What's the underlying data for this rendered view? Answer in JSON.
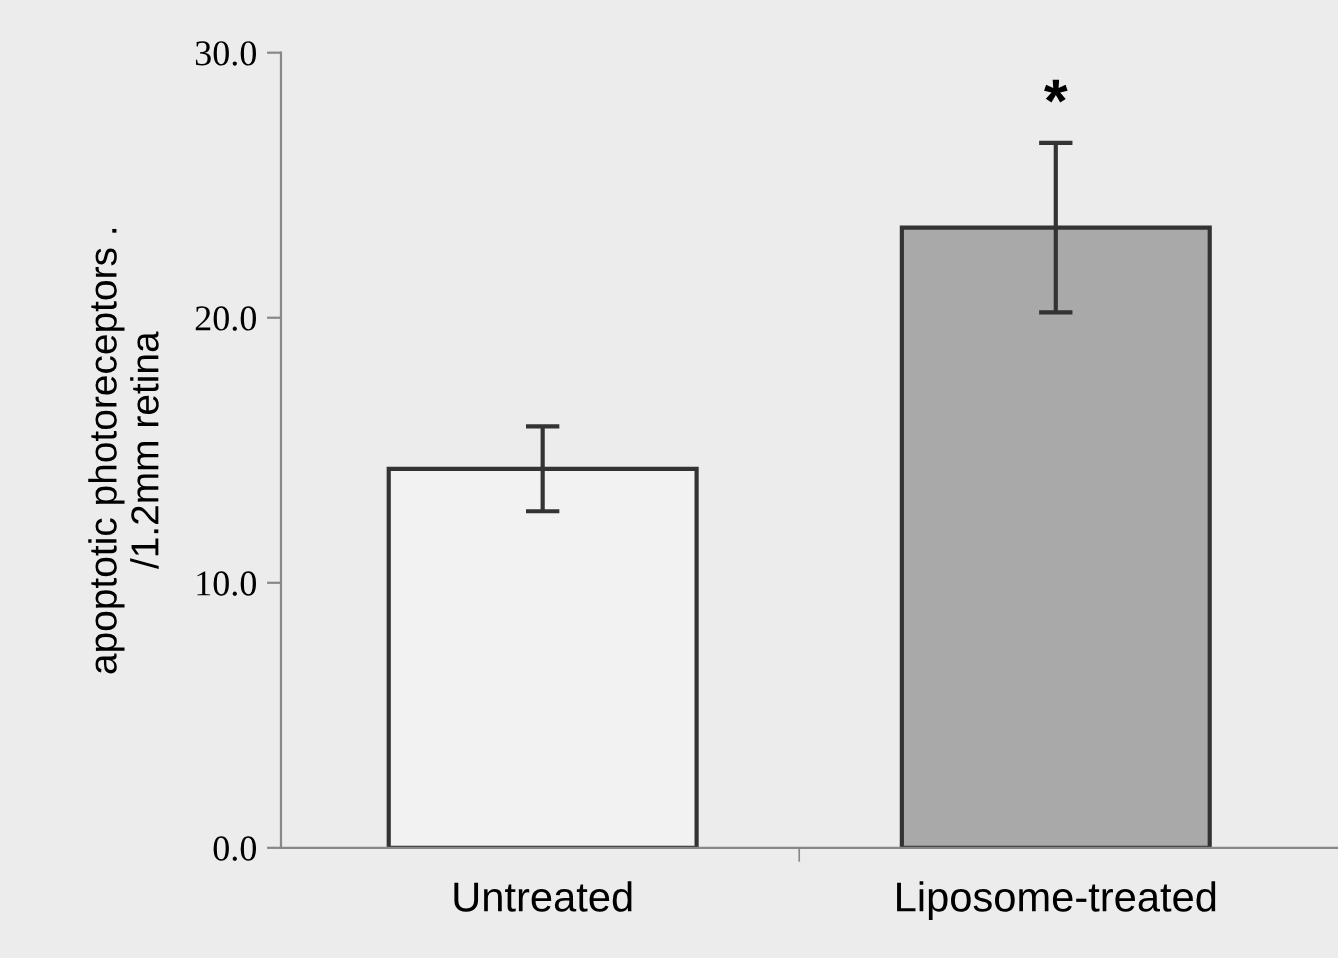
{
  "chart_data": {
    "type": "bar",
    "ylabel": "apoptotic photoreceptors .\n/1.2mm retina",
    "categories": [
      "Untreated",
      "Liposome-treated"
    ],
    "values": [
      14.3,
      23.4
    ],
    "errors": [
      1.6,
      3.2
    ],
    "colors": [
      "#f2f2f2",
      "#a9a9a9"
    ],
    "ylim": [
      0,
      30
    ],
    "yticks": [
      {
        "value": 0,
        "label": "0.0"
      },
      {
        "value": 10,
        "label": "10.0"
      },
      {
        "value": 20,
        "label": "20.0"
      },
      {
        "value": 30,
        "label": "30.0"
      }
    ],
    "annotations": [
      "*"
    ],
    "grid": false,
    "legend": false
  }
}
